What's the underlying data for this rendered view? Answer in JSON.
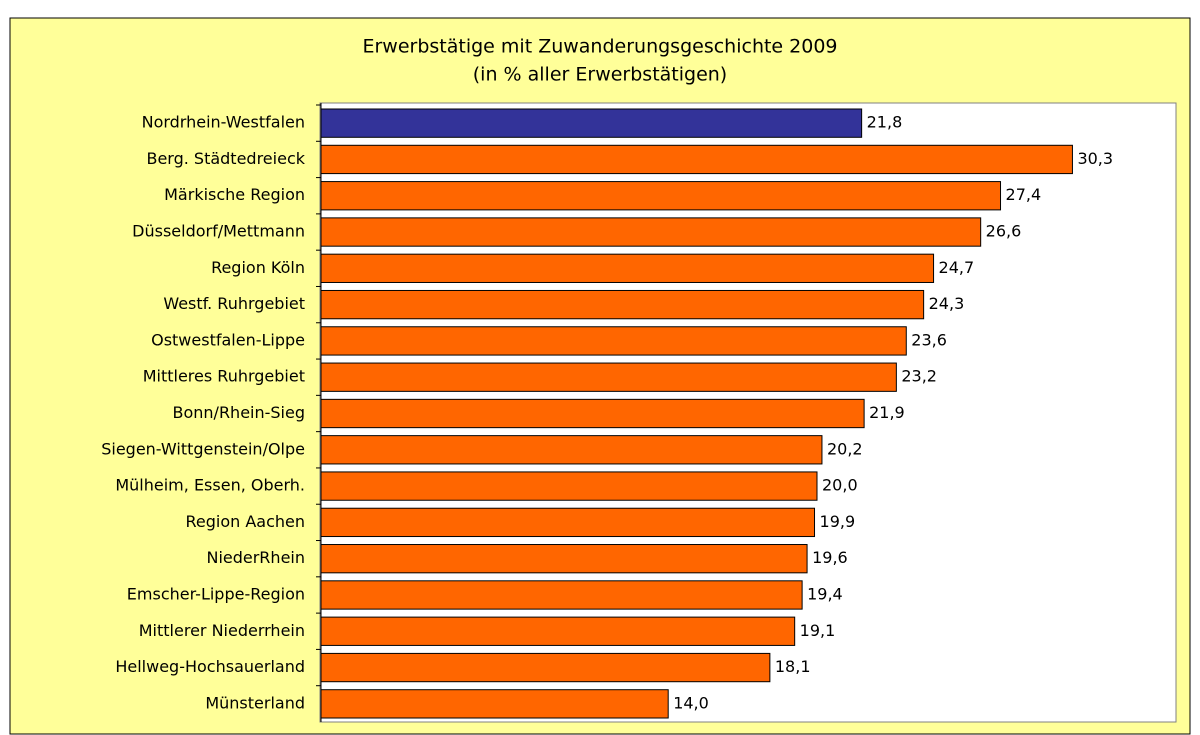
{
  "chart_data": {
    "type": "barh",
    "title": "Erwerbstätige mit Zuwanderungsgeschichte 2009",
    "subtitle": "(in % aller Erwerbstätigen)",
    "categories": [
      "Nordrhein-Westfalen",
      "Berg. Städtedreieck",
      "Märkische Region",
      "Düsseldorf/Mettmann",
      "Region Köln",
      "Westf. Ruhrgebiet",
      "Ostwestfalen-Lippe",
      "Mittleres Ruhrgebiet",
      "Bonn/Rhein-Sieg",
      "Siegen-Wittgenstein/Olpe",
      "Mülheim, Essen, Oberh.",
      "Region Aachen",
      "NiederRhein",
      "Emscher-Lippe-Region",
      "Mittlerer Niederrhein",
      "Hellweg-Hochsauerland",
      "Münsterland"
    ],
    "values": [
      21.8,
      30.3,
      27.4,
      26.6,
      24.7,
      24.3,
      23.6,
      23.2,
      21.9,
      20.2,
      20.0,
      19.9,
      19.6,
      19.4,
      19.1,
      18.1,
      14.0
    ],
    "value_labels": [
      "21,8",
      "30,3",
      "27,4",
      "26,6",
      "24,7",
      "24,3",
      "23,6",
      "23,2",
      "21,9",
      "20,2",
      "20,0",
      "19,9",
      "19,6",
      "19,4",
      "19,1",
      "18,1",
      "14,0"
    ],
    "colors": [
      "#333399",
      "#ff6600",
      "#ff6600",
      "#ff6600",
      "#ff6600",
      "#ff6600",
      "#ff6600",
      "#ff6600",
      "#ff6600",
      "#ff6600",
      "#ff6600",
      "#ff6600",
      "#ff6600",
      "#ff6600",
      "#ff6600",
      "#ff6600",
      "#ff6600"
    ],
    "xlim": [
      0,
      35
    ]
  }
}
